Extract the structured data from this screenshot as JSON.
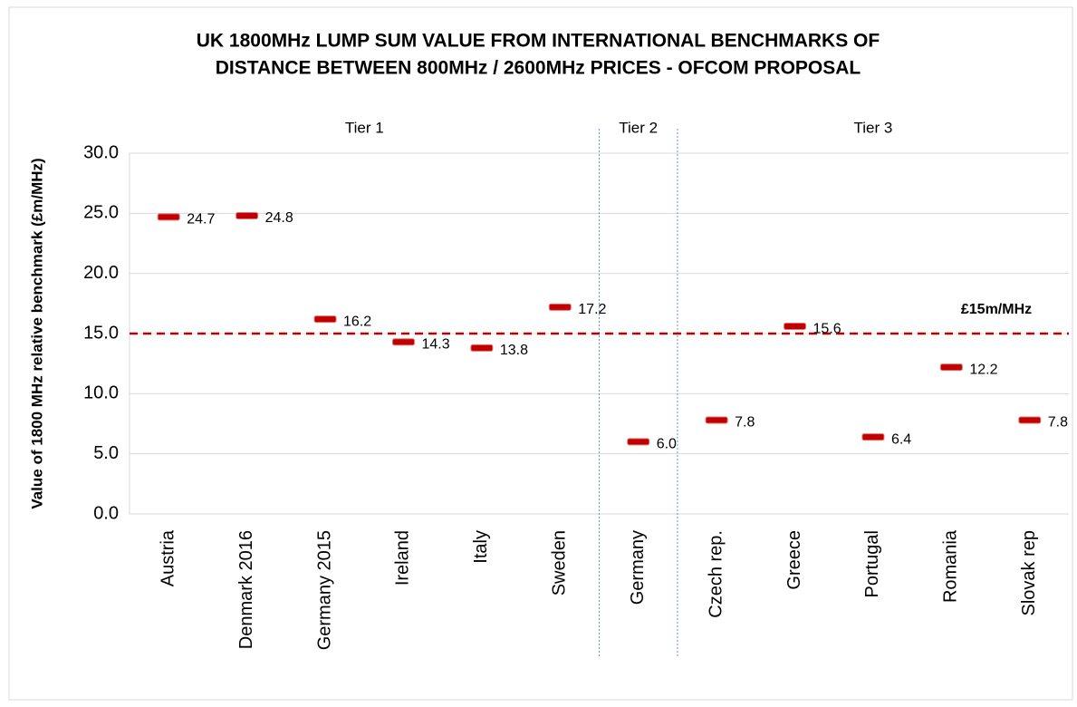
{
  "chart_data": {
    "type": "marker",
    "title": [
      "UK 1800MHz LUMP SUM VALUE FROM INTERNATIONAL BENCHMARKS OF",
      "DISTANCE BETWEEN 800MHz / 2600MHz PRICES - OFCOM PROPOSAL"
    ],
    "y_label": "Value of 1800 MHz relative benchmark (£m/MHz)",
    "categories": [
      "Austria",
      "Denmark 2016",
      "Germany 2015",
      "Ireland",
      "Italy",
      "Sweden",
      "Germany",
      "Czech rep.",
      "Greece",
      "Portugal",
      "Romania",
      "Slovak rep"
    ],
    "values": [
      24.7,
      24.8,
      16.2,
      14.3,
      13.8,
      17.2,
      6,
      7.8,
      15.6,
      6.4,
      12.2,
      7.8
    ],
    "value_labels": [
      "24.7",
      "24.8",
      "16.2",
      "14.3",
      "13.8",
      "17.2",
      "6.0",
      "7.8",
      "15.6",
      "6.4",
      "12.2",
      "7.8"
    ],
    "color": "#c00000",
    "tiers": [
      "Tier 1",
      "Tier 2",
      "Tier 3"
    ],
    "reference_line": {
      "value": 15,
      "label": "£15m/MHz",
      "color": "#c00000"
    },
    "ylim": [
      0,
      30
    ],
    "yticks": [
      {
        "value": 0,
        "label": "0.0"
      },
      {
        "value": 5,
        "label": "5.0"
      },
      {
        "value": 10,
        "label": "10.0"
      },
      {
        "value": 15,
        "label": "15.0"
      },
      {
        "value": 20,
        "label": "20.0"
      },
      {
        "value": 25,
        "label": "25.0"
      },
      {
        "value": 30,
        "label": "30.0"
      }
    ],
    "grid": true
  }
}
